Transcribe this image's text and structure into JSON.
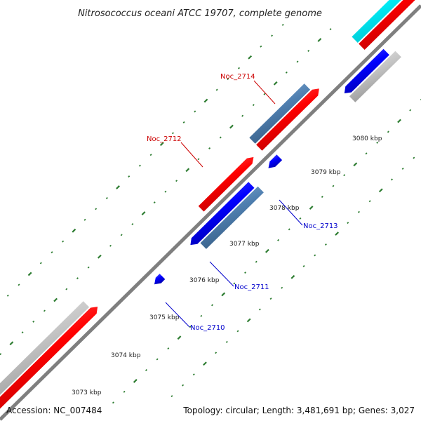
{
  "title": "Nitrosococcus oceani ATCC 19707, complete genome",
  "footer": {
    "accession": "Accession: NC_007484",
    "summary": "Topology: circular; Length: 3,481,691 bp; Genes: 3,027"
  },
  "colors": {
    "backbone": "#7f7f7f",
    "tick": "#2e7d32",
    "forward_gene": "#ff0000",
    "reverse_gene": "#0000ff",
    "forward_cds": "#4f7fb0",
    "rna": "#bdbdbd",
    "other": "#00ffff",
    "label_forward": "#cc0000",
    "label_reverse": "#0000cc"
  },
  "kbp_ticks": [
    "3073 kbp",
    "3074 kbp",
    "3075 kbp",
    "3076 kbp",
    "3077 kbp",
    "3078 kbp",
    "3079 kbp",
    "3080 kbp"
  ],
  "gene_labels": [
    {
      "name": "Noc_2714",
      "strand": "forward"
    },
    {
      "name": "Noc_2712",
      "strand": "forward"
    },
    {
      "name": "Noc_2713",
      "strand": "reverse"
    },
    {
      "name": "Noc_2711",
      "strand": "reverse"
    },
    {
      "name": "Noc_2710",
      "strand": "reverse"
    }
  ]
}
